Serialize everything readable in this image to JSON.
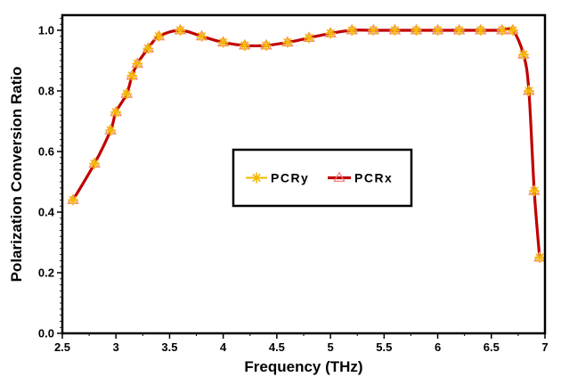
{
  "chart_data": {
    "type": "line",
    "xlabel": "Frequency (THz)",
    "ylabel": "Polarization Conversion Ratio",
    "xlim": [
      2.5,
      7.0
    ],
    "ylim": [
      0.0,
      1.05
    ],
    "x_ticks": [
      "2.5",
      "3",
      "3.5",
      "4",
      "4.5",
      "5",
      "5.5",
      "6",
      "6.5",
      "7"
    ],
    "y_ticks": [
      "0.0",
      "0.2",
      "0.4",
      "0.6",
      "0.8",
      "1.0"
    ],
    "grid": false,
    "legend_position": "center",
    "series": [
      {
        "name": "PCRy",
        "color": "#f5b800",
        "marker": "asterisk",
        "x": [
          2.6,
          2.8,
          2.95,
          3.0,
          3.1,
          3.15,
          3.2,
          3.3,
          3.4,
          3.6,
          3.8,
          4.0,
          4.2,
          4.4,
          4.6,
          4.8,
          5.0,
          5.2,
          5.4,
          5.6,
          5.8,
          6.0,
          6.2,
          6.4,
          6.6,
          6.7,
          6.8,
          6.85,
          6.9,
          6.95
        ],
        "y": [
          0.44,
          0.56,
          0.67,
          0.73,
          0.79,
          0.85,
          0.89,
          0.94,
          0.98,
          1.0,
          0.98,
          0.96,
          0.95,
          0.95,
          0.96,
          0.975,
          0.99,
          1.0,
          1.0,
          1.0,
          1.0,
          1.0,
          1.0,
          1.0,
          1.0,
          1.0,
          0.92,
          0.8,
          0.47,
          0.25
        ]
      },
      {
        "name": "PCRx",
        "color": "#c00000",
        "marker": "triangle",
        "x": [
          2.6,
          2.8,
          2.95,
          3.0,
          3.1,
          3.15,
          3.2,
          3.3,
          3.4,
          3.6,
          3.8,
          4.0,
          4.2,
          4.4,
          4.6,
          4.8,
          5.0,
          5.2,
          5.4,
          5.6,
          5.8,
          6.0,
          6.2,
          6.4,
          6.6,
          6.7,
          6.8,
          6.85,
          6.9,
          6.95
        ],
        "y": [
          0.44,
          0.56,
          0.67,
          0.73,
          0.79,
          0.85,
          0.89,
          0.94,
          0.98,
          1.0,
          0.98,
          0.96,
          0.95,
          0.95,
          0.96,
          0.975,
          0.99,
          1.0,
          1.0,
          1.0,
          1.0,
          1.0,
          1.0,
          1.0,
          1.0,
          1.0,
          0.92,
          0.8,
          0.47,
          0.25
        ]
      }
    ]
  }
}
